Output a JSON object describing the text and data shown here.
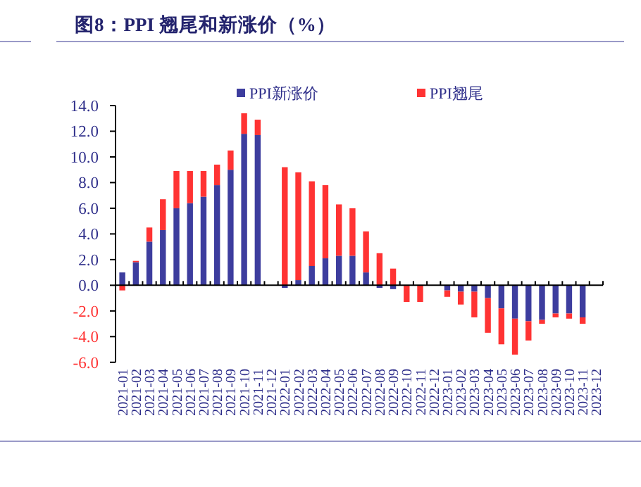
{
  "chart_data": {
    "type": "bar",
    "title": "图8：PPI 翘尾和新涨价（%）",
    "stacked": true,
    "legend": "top",
    "categories": [
      "2021-01",
      "2021-02",
      "2021-03",
      "2021-04",
      "2021-05",
      "2021-06",
      "2021-07",
      "2021-08",
      "2021-09",
      "2021-10",
      "2021-11",
      "2021-12",
      "2022-01",
      "2022-02",
      "2022-03",
      "2022-04",
      "2022-05",
      "2022-06",
      "2022-07",
      "2022-08",
      "2022-09",
      "2022-10",
      "2022-11",
      "2022-12",
      "2023-01",
      "2023-02",
      "2023-03",
      "2023-04",
      "2023-05",
      "2023-06",
      "2023-07",
      "2023-08",
      "2023-09",
      "2023-10",
      "2023-11",
      "2023-12"
    ],
    "series": [
      {
        "name": "PPI新涨价",
        "color": "#3d3d9e",
        "values": [
          1.0,
          1.8,
          3.4,
          4.3,
          6.0,
          6.4,
          6.9,
          7.8,
          9.0,
          11.8,
          11.7,
          null,
          -0.2,
          0.4,
          1.5,
          2.1,
          2.3,
          2.3,
          1.0,
          -0.2,
          -0.3,
          0,
          0,
          null,
          -0.4,
          -0.5,
          -0.5,
          -1.0,
          -1.8,
          -2.6,
          -2.8,
          -2.7,
          -2.2,
          -2.2,
          -2.5,
          null
        ]
      },
      {
        "name": "PPI翘尾",
        "color": "#ff3333",
        "values": [
          -0.4,
          0.1,
          1.1,
          2.4,
          2.9,
          2.5,
          2.0,
          1.6,
          1.5,
          1.6,
          1.2,
          null,
          9.2,
          8.4,
          6.6,
          5.7,
          4.0,
          3.7,
          3.2,
          2.5,
          1.3,
          -1.3,
          -1.3,
          null,
          -0.5,
          -1.0,
          -2.0,
          -2.7,
          -2.8,
          -2.8,
          -1.5,
          -0.3,
          -0.3,
          -0.4,
          -0.5,
          null
        ]
      }
    ],
    "ylim": [
      -6,
      14
    ],
    "yticks": [
      {
        "value": -6,
        "label": "-6.0"
      },
      {
        "value": -4,
        "label": "-4.0"
      },
      {
        "value": -2,
        "label": "-2.0"
      },
      {
        "value": 0,
        "label": "0.0"
      },
      {
        "value": 2,
        "label": "2.0"
      },
      {
        "value": 4,
        "label": "4.0"
      },
      {
        "value": 6,
        "label": "6.0"
      },
      {
        "value": 8,
        "label": "8.0"
      },
      {
        "value": 10,
        "label": "10.0"
      },
      {
        "value": 12,
        "label": "12.0"
      },
      {
        "value": 14,
        "label": "14.0"
      }
    ]
  }
}
